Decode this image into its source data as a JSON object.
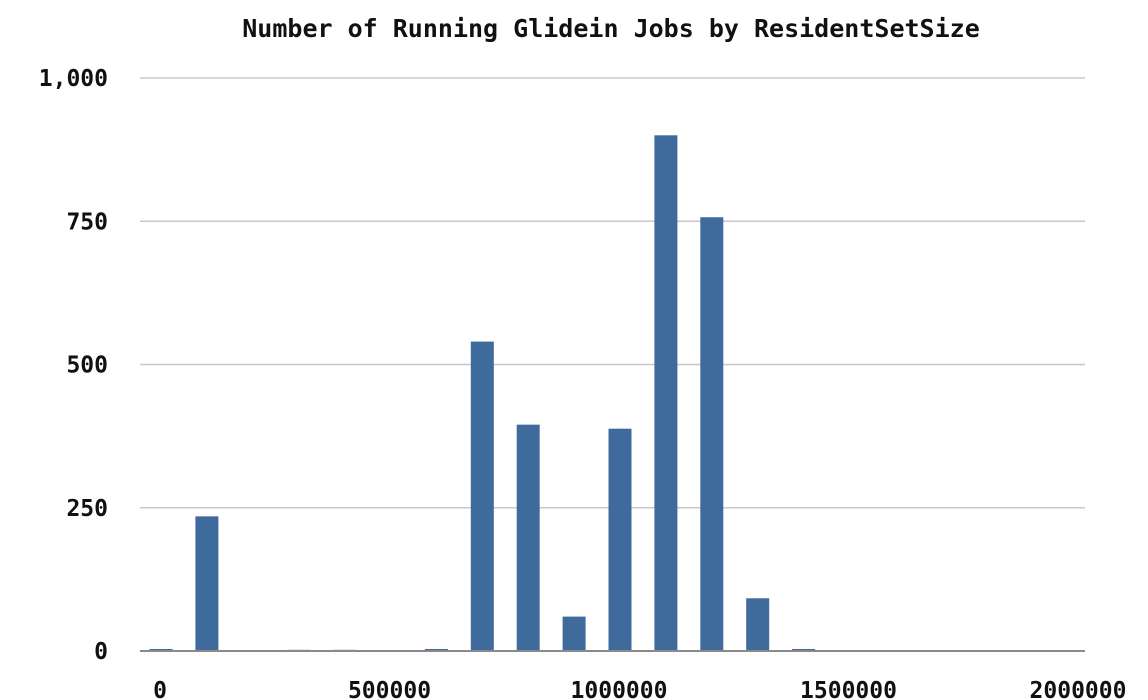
{
  "chart_data": {
    "type": "bar",
    "title": "Number of Running Glidein Jobs by ResidentSetSize",
    "xlabel": "",
    "ylabel": "",
    "x": [
      0,
      100000,
      200000,
      300000,
      400000,
      500000,
      600000,
      700000,
      800000,
      900000,
      1000000,
      1100000,
      1200000,
      1300000,
      1400000
    ],
    "values": [
      3,
      235,
      0,
      1,
      1,
      0,
      3,
      540,
      395,
      60,
      388,
      900,
      757,
      92,
      3
    ],
    "xlim": [
      0,
      2000000
    ],
    "ylim": [
      0,
      1000
    ],
    "x_ticks": [
      0,
      500000,
      1000000,
      1500000,
      2000000
    ],
    "x_tick_labels": [
      "0",
      "500000",
      "1000000",
      "1500000",
      "2000000"
    ],
    "y_ticks": [
      0,
      250,
      500,
      750,
      1000
    ],
    "y_tick_labels": [
      "0",
      "250",
      "500",
      "750",
      "1,000"
    ],
    "grid": true,
    "legend": "none",
    "bar_color": "#3f6b9c",
    "grid_color": "#c8c8c8"
  }
}
